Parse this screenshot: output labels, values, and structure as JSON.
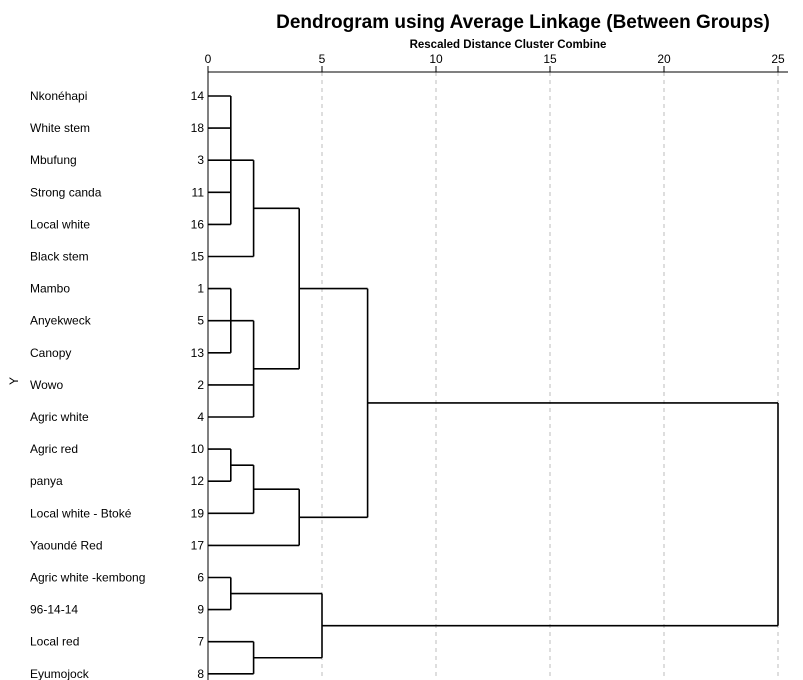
{
  "chart_data": {
    "type": "dendrogram",
    "title": "Dendrogram using Average Linkage (Between Groups)",
    "xlabel": "Rescaled Distance Cluster Combine",
    "ylabel": "Y",
    "xlim": [
      0,
      25
    ],
    "xticks": [
      0,
      5,
      10,
      15,
      20,
      25
    ],
    "grid": "vertical-dashed",
    "leaves": [
      {
        "label": "Nkonéhapi",
        "case": "14"
      },
      {
        "label": "White stem",
        "case": "18"
      },
      {
        "label": "Mbufung",
        "case": "3"
      },
      {
        "label": "Strong canda",
        "case": "11"
      },
      {
        "label": "Local white",
        "case": "16"
      },
      {
        "label": "Black stem",
        "case": "15"
      },
      {
        "label": "Mambo",
        "case": "1"
      },
      {
        "label": "Anyekweck",
        "case": "5"
      },
      {
        "label": "Canopy",
        "case": "13"
      },
      {
        "label": "Wowo",
        "case": "2"
      },
      {
        "label": "Agric white",
        "case": "4"
      },
      {
        "label": "Agric red",
        "case": "10"
      },
      {
        "label": "panya",
        "case": "12"
      },
      {
        "label": "Local white - Btoké",
        "case": "19"
      },
      {
        "label": "Yaoundé Red",
        "case": "17"
      },
      {
        "label": "Agric white -kembong",
        "case": "6"
      },
      {
        "label": "96-14-14",
        "case": "9"
      },
      {
        "label": "Local red",
        "case": "7"
      },
      {
        "label": "Eyumojock",
        "case": "8"
      }
    ],
    "merges": [
      {
        "children": [
          0,
          1,
          2,
          3,
          4
        ],
        "distance": 1
      },
      {
        "children": [
          "m0",
          5
        ],
        "distance": 2
      },
      {
        "children": [
          6,
          7,
          8
        ],
        "distance": 1
      },
      {
        "children": [
          "m2",
          9,
          10
        ],
        "distance": 2
      },
      {
        "children": [
          "m1",
          "m3"
        ],
        "distance": 4
      },
      {
        "children": [
          11,
          12
        ],
        "distance": 1
      },
      {
        "children": [
          "m5",
          13
        ],
        "distance": 2
      },
      {
        "children": [
          "m6",
          14
        ],
        "distance": 4
      },
      {
        "children": [
          "m4",
          "m7"
        ],
        "distance": 7
      },
      {
        "children": [
          15,
          16
        ],
        "distance": 1
      },
      {
        "children": [
          17,
          18
        ],
        "distance": 2
      },
      {
        "children": [
          "m9",
          "m10"
        ],
        "distance": 5
      },
      {
        "children": [
          "m8",
          "m11"
        ],
        "distance": 25
      }
    ]
  }
}
